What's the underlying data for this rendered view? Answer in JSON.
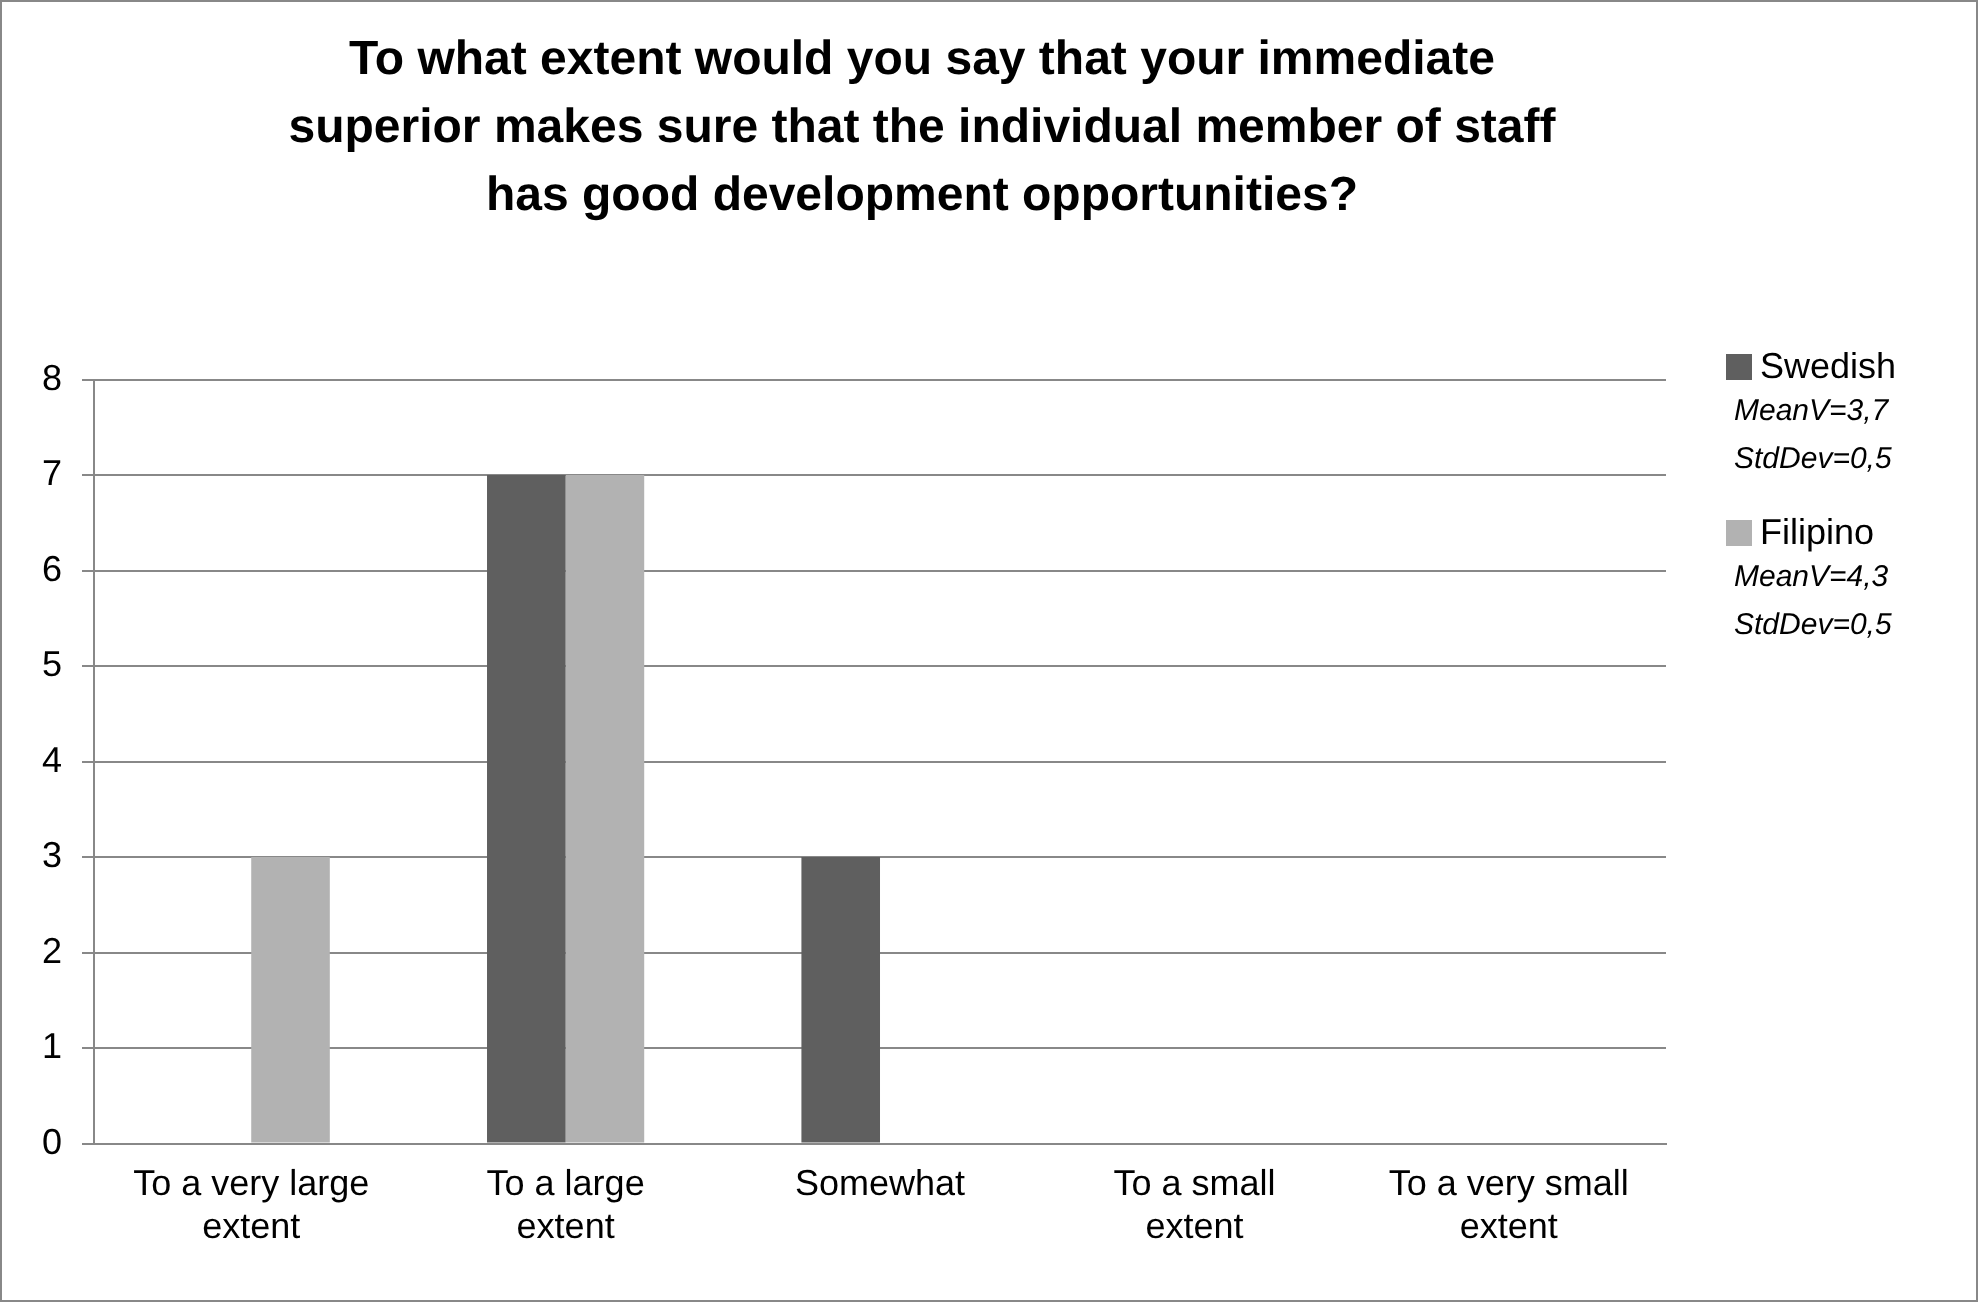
{
  "chart_data": {
    "type": "bar",
    "title": "To what extent would you say that your immediate superior makes sure that the individual member of staff has good development opportunities?",
    "categories": [
      "To a very large extent",
      "To a large extent",
      "Somewhat",
      "To a small extent",
      "To a very small extent"
    ],
    "series": [
      {
        "name": "Swedish",
        "color": "#5f5f5f",
        "values": [
          0,
          7,
          3,
          0,
          0
        ]
      },
      {
        "name": "Filipino",
        "color": "#b2b2b2",
        "values": [
          3,
          7,
          0,
          0,
          0
        ]
      }
    ],
    "annotations": [
      "MeanV=3,7",
      "StdDev=0,5",
      "MeanV=4,3",
      "StdDev=0,5"
    ],
    "ylim": [
      0,
      8
    ],
    "yticks": [
      0,
      1,
      2,
      3,
      4,
      5,
      6,
      7,
      8
    ],
    "grid": "y",
    "legend": "right"
  }
}
